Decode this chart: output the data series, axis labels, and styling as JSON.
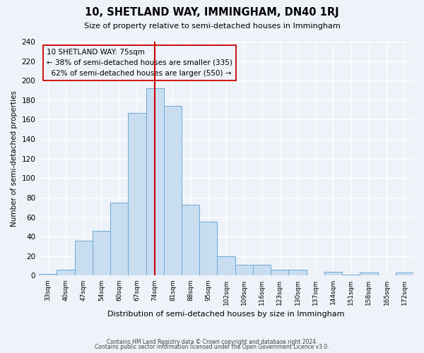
{
  "title": "10, SHETLAND WAY, IMMINGHAM, DN40 1RJ",
  "subtitle": "Size of property relative to semi-detached houses in Immingham",
  "xlabel": "Distribution of semi-detached houses by size in Immingham",
  "ylabel": "Number of semi-detached properties",
  "bin_labels": [
    "33sqm",
    "40sqm",
    "47sqm",
    "54sqm",
    "60sqm",
    "67sqm",
    "74sqm",
    "81sqm",
    "88sqm",
    "95sqm",
    "102sqm",
    "109sqm",
    "116sqm",
    "123sqm",
    "130sqm",
    "137sqm",
    "144sqm",
    "151sqm",
    "158sqm",
    "165sqm",
    "172sqm"
  ],
  "bar_values": [
    2,
    6,
    36,
    46,
    75,
    167,
    192,
    174,
    73,
    55,
    20,
    11,
    11,
    6,
    6,
    0,
    4,
    1,
    3,
    0,
    3
  ],
  "bar_color": "#c9ddf0",
  "bar_edge_color": "#6aaad4",
  "vline_color": "#cc0000",
  "vline_x_index": 6,
  "annotation_box_edge": "#cc0000",
  "property_label": "10 SHETLAND WAY: 75sqm",
  "smaller_pct": 38,
  "smaller_count": 335,
  "larger_pct": 62,
  "larger_count": 550,
  "ylim": [
    0,
    240
  ],
  "yticks": [
    0,
    20,
    40,
    60,
    80,
    100,
    120,
    140,
    160,
    180,
    200,
    220,
    240
  ],
  "footer_line1": "Contains HM Land Registry data © Crown copyright and database right 2024.",
  "footer_line2": "Contains public sector information licensed under the Open Government Licence v3.0.",
  "bg_color": "#eef2f9",
  "grid_color": "#d8e0ed"
}
